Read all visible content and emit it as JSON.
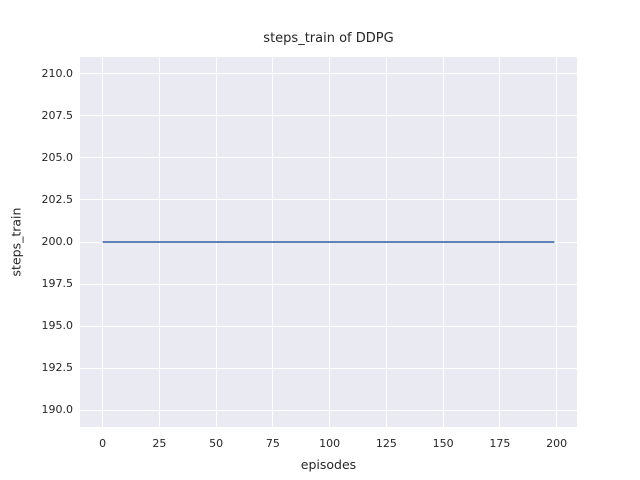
{
  "chart_data": {
    "type": "line",
    "title": "steps_train of DDPG",
    "xlabel": "episodes",
    "ylabel": "steps_train",
    "xlim": [
      -9.95,
      208.95
    ],
    "ylim": [
      189,
      211
    ],
    "x_tick_values": [
      0,
      25,
      50,
      75,
      100,
      125,
      150,
      175,
      200
    ],
    "x_tick_labels": [
      "0",
      "25",
      "50",
      "75",
      "100",
      "125",
      "150",
      "175",
      "200"
    ],
    "y_tick_values": [
      190.0,
      192.5,
      195.0,
      197.5,
      200.0,
      202.5,
      205.0,
      207.5,
      210.0
    ],
    "y_tick_labels": [
      "190.0",
      "192.5",
      "195.0",
      "197.5",
      "200.0",
      "202.5",
      "205.0",
      "207.5",
      "210.0"
    ],
    "grid": true,
    "legend": false,
    "series": [
      {
        "name": "steps_train",
        "color": "#4c72b0",
        "linewidth": 1.8,
        "x": [
          0,
          199
        ],
        "y": [
          200,
          200
        ]
      }
    ],
    "style": {
      "figure_background": "#ffffff",
      "axes_background": "#eaeaf2",
      "grid_color": "#ffffff",
      "text_color": "#262626"
    }
  }
}
